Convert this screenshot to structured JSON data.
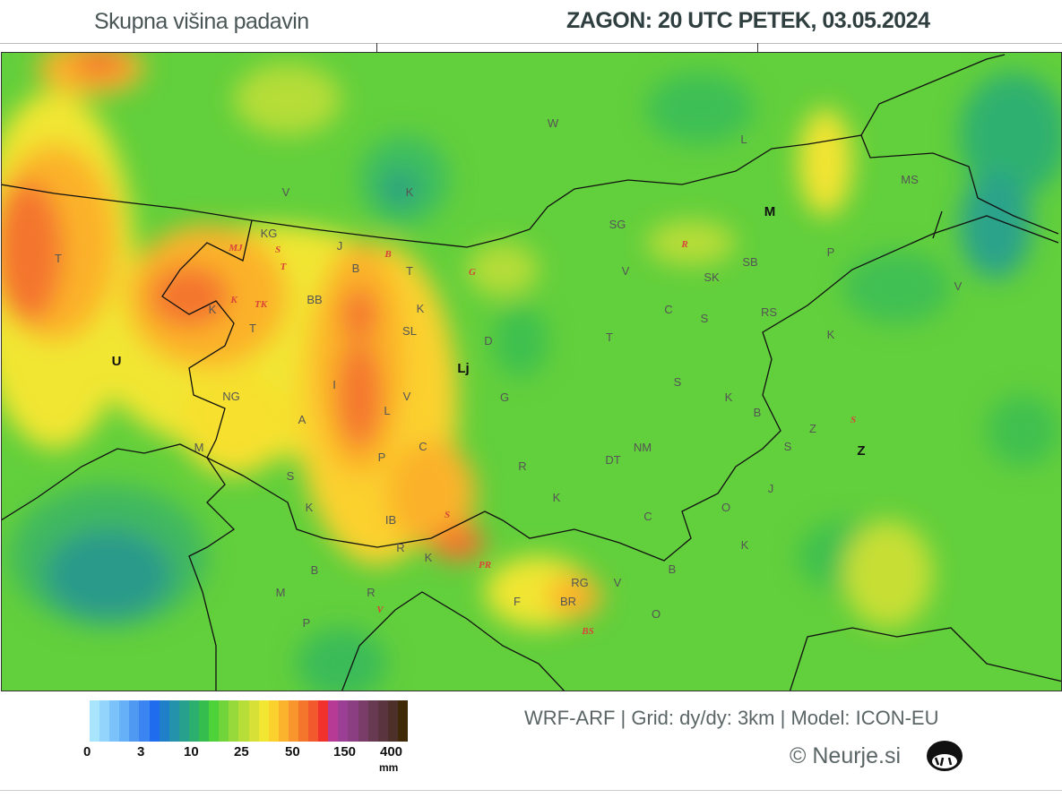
{
  "header": {
    "title": "Skupna višina padavin",
    "run": "ZAGON: 20 UTC  PETEK, 03.05.2024"
  },
  "legend": {
    "colors": [
      "#a8e4fb",
      "#92d4fb",
      "#7cc2fa",
      "#66b0f7",
      "#4f99f3",
      "#3b85f2",
      "#1f6cef",
      "#1f7fc9",
      "#2392aa",
      "#27a08e",
      "#2cae6f",
      "#35be4d",
      "#4ed23a",
      "#72d43b",
      "#97d83a",
      "#b6dd38",
      "#d7e036",
      "#f1e631",
      "#fbd12d",
      "#fbb22c",
      "#f8962d",
      "#f4762d",
      "#f25a2e",
      "#f0312c",
      "#b73b95",
      "#9b3f95",
      "#8b3f82",
      "#7a3d6a",
      "#683a52",
      "#5a3540",
      "#4d3029",
      "#3f2906"
    ],
    "ticks": [
      "0",
      "3",
      "10",
      "25",
      "50",
      "150",
      "400"
    ],
    "unit": "mm"
  },
  "footer": {
    "model": "WRF-ARF | Grid: dy/dy: 3km | Model: ICON-EU",
    "copyright": "© Neurje.si"
  },
  "map": {
    "labels": [
      {
        "t": "W"
      },
      {
        "t": "L"
      },
      {
        "t": "K"
      },
      {
        "t": "V"
      },
      {
        "t": "MS"
      },
      {
        "t": "M",
        "bold": true
      },
      {
        "t": "SG"
      },
      {
        "t": "KG"
      },
      {
        "t": "J"
      },
      {
        "t": "SB"
      },
      {
        "t": "P"
      },
      {
        "t": "T"
      },
      {
        "t": "B"
      },
      {
        "t": "T"
      },
      {
        "t": "V"
      },
      {
        "t": "SK"
      },
      {
        "t": "BB"
      },
      {
        "t": "K"
      },
      {
        "t": "K"
      },
      {
        "t": "C"
      },
      {
        "t": "S"
      },
      {
        "t": "RS"
      },
      {
        "t": "T"
      },
      {
        "t": "SL"
      },
      {
        "t": "D"
      },
      {
        "t": "T"
      },
      {
        "t": "K"
      },
      {
        "t": "V"
      },
      {
        "t": "U",
        "bold": true
      },
      {
        "t": "Lj",
        "bold": true
      },
      {
        "t": "S"
      },
      {
        "t": "K"
      },
      {
        "t": "I"
      },
      {
        "t": "V"
      },
      {
        "t": "G"
      },
      {
        "t": "NG"
      },
      {
        "t": "L"
      },
      {
        "t": "B"
      },
      {
        "t": "A"
      },
      {
        "t": "C"
      },
      {
        "t": "NM"
      },
      {
        "t": "Z"
      },
      {
        "t": "S"
      },
      {
        "t": "Z",
        "bold": true
      },
      {
        "t": "M"
      },
      {
        "t": "P"
      },
      {
        "t": "DT"
      },
      {
        "t": "R"
      },
      {
        "t": "S"
      },
      {
        "t": "J"
      },
      {
        "t": "K"
      },
      {
        "t": "K"
      },
      {
        "t": "O"
      },
      {
        "t": "C"
      },
      {
        "t": "IB"
      },
      {
        "t": "K"
      },
      {
        "t": "R"
      },
      {
        "t": "K"
      },
      {
        "t": "B"
      },
      {
        "t": "B"
      },
      {
        "t": "RG"
      },
      {
        "t": "V"
      },
      {
        "t": "M"
      },
      {
        "t": "R"
      },
      {
        "t": "BR"
      },
      {
        "t": "F"
      },
      {
        "t": "P"
      },
      {
        "t": "O"
      },
      {
        "t": "MJ",
        "red": true
      },
      {
        "t": "S",
        "red": true
      },
      {
        "t": "T",
        "red": true
      },
      {
        "t": "B",
        "red": true
      },
      {
        "t": "G",
        "red": true
      },
      {
        "t": "TK",
        "red": true
      },
      {
        "t": "K",
        "red": true
      },
      {
        "t": "R",
        "red": true
      },
      {
        "t": "S",
        "red": true
      },
      {
        "t": "PR",
        "red": true
      },
      {
        "t": "BS",
        "red": true
      },
      {
        "t": "V",
        "red": true
      },
      {
        "t": "S",
        "red": true
      }
    ]
  }
}
